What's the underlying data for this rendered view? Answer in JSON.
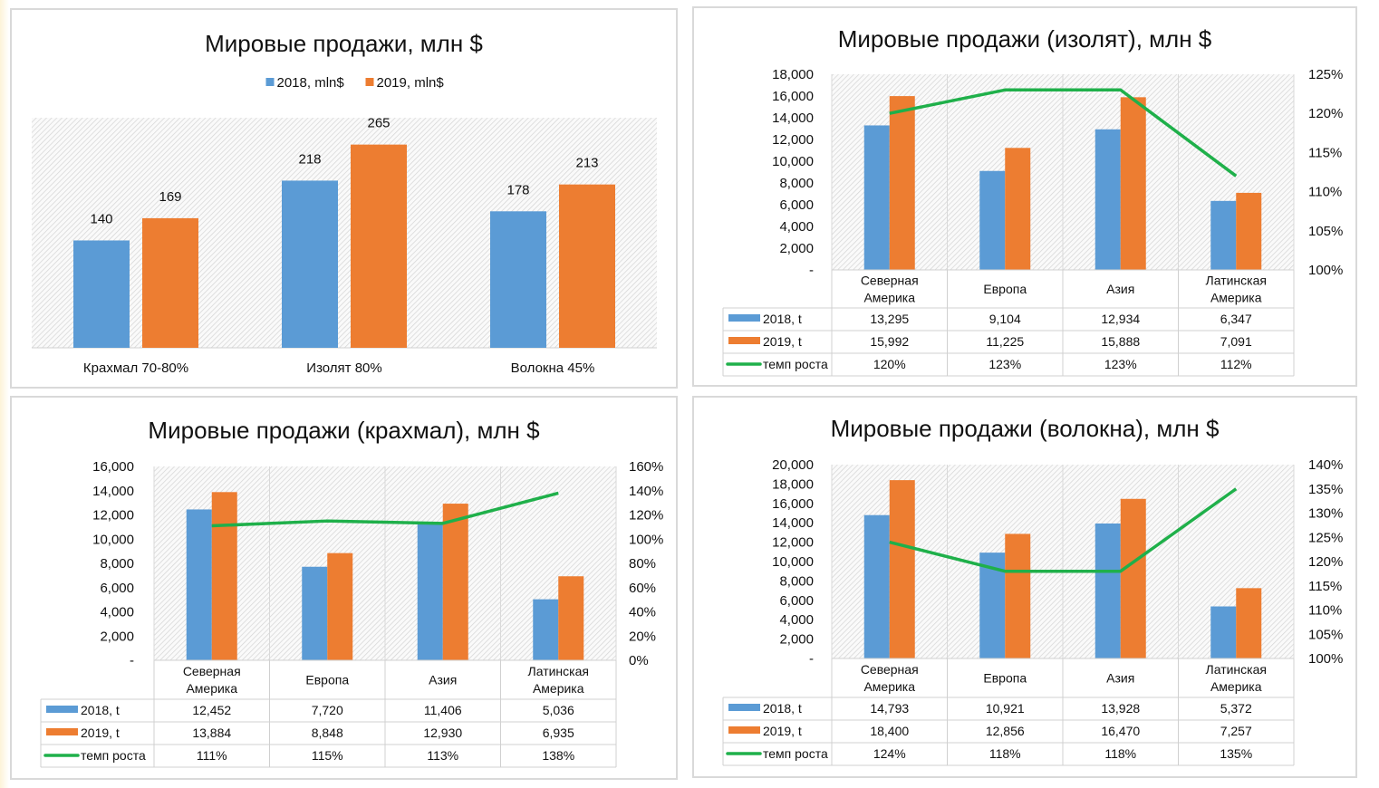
{
  "colors": {
    "y2018": "#5b9bd5",
    "y2019": "#ed7d31",
    "growth": "#1fb04a"
  },
  "chart_data": [
    {
      "type": "bar",
      "title": "Мировые продажи, млн $",
      "legend": [
        "2018, mln$",
        "2019, mln$"
      ],
      "legend_position": "top",
      "categories": [
        "Крахмал 70-80%",
        "Изолят 80%",
        "Волокна 45%"
      ],
      "series": [
        {
          "name": "2018, mln$",
          "values": [
            140,
            218,
            178
          ],
          "labels": [
            "140",
            "218",
            "178"
          ]
        },
        {
          "name": "2019, mln$",
          "values": [
            169,
            265,
            213
          ],
          "labels": [
            "169",
            "265",
            "213"
          ]
        }
      ],
      "ylim": [
        0,
        300
      ]
    },
    {
      "type": "bar+line",
      "title": "Мировые продажи (изолят), млн $",
      "categories": [
        "Северная|Америка",
        "Европа",
        "Азия",
        "Латинская|Америка"
      ],
      "series": [
        {
          "name": "2018, t",
          "values": [
            13295,
            9104,
            12934,
            6347
          ],
          "labels": [
            "13,295",
            "9,104",
            "12,934",
            "6,347"
          ]
        },
        {
          "name": "2019, t",
          "values": [
            15992,
            11225,
            15888,
            7091
          ],
          "labels": [
            "15,992",
            "11,225",
            "15,888",
            "7,091"
          ]
        },
        {
          "name": "темп роста",
          "axis": "right",
          "values": [
            1.2,
            1.23,
            1.23,
            1.12
          ],
          "labels": [
            "120%",
            "123%",
            "123%",
            "112%"
          ]
        }
      ],
      "ylim": [
        0,
        18000
      ],
      "y2lim": [
        1.0,
        1.25
      ],
      "yticks": [
        "-",
        "2,000",
        "4,000",
        "6,000",
        "8,000",
        "10,000",
        "12,000",
        "14,000",
        "16,000",
        "18,000"
      ],
      "y2ticks": [
        "100%",
        "105%",
        "110%",
        "115%",
        "120%",
        "125%"
      ]
    },
    {
      "type": "bar+line",
      "title": "Мировые продажи (крахмал), млн $",
      "categories": [
        "Северная|Америка",
        "Европа",
        "Азия",
        "Латинская|Америка"
      ],
      "series": [
        {
          "name": "2018, t",
          "values": [
            12452,
            7720,
            11406,
            5036
          ],
          "labels": [
            "12,452",
            "7,720",
            "11,406",
            "5,036"
          ]
        },
        {
          "name": "2019, t",
          "values": [
            13884,
            8848,
            12930,
            6935
          ],
          "labels": [
            "13,884",
            "8,848",
            "12,930",
            "6,935"
          ]
        },
        {
          "name": "темп роста",
          "axis": "right",
          "values": [
            1.11,
            1.15,
            1.13,
            1.38
          ],
          "labels": [
            "111%",
            "115%",
            "113%",
            "138%"
          ]
        }
      ],
      "ylim": [
        0,
        16000
      ],
      "y2lim": [
        0,
        1.6
      ],
      "yticks": [
        "-",
        "2,000",
        "4,000",
        "6,000",
        "8,000",
        "10,000",
        "12,000",
        "14,000",
        "16,000"
      ],
      "y2ticks": [
        "0%",
        "20%",
        "40%",
        "60%",
        "80%",
        "100%",
        "120%",
        "140%",
        "160%"
      ]
    },
    {
      "type": "bar+line",
      "title": "Мировые продажи (волокна), млн $",
      "categories": [
        "Северная|Америка",
        "Европа",
        "Азия",
        "Латинская|Америка"
      ],
      "series": [
        {
          "name": "2018, t",
          "values": [
            14793,
            10921,
            13928,
            5372
          ],
          "labels": [
            "14,793",
            "10,921",
            "13,928",
            "5,372"
          ]
        },
        {
          "name": "2019, t",
          "values": [
            18400,
            12856,
            16470,
            7257
          ],
          "labels": [
            "18,400",
            "12,856",
            "16,470",
            "7,257"
          ]
        },
        {
          "name": "темп роста",
          "axis": "right",
          "values": [
            1.24,
            1.18,
            1.18,
            1.35
          ],
          "labels": [
            "124%",
            "118%",
            "118%",
            "135%"
          ]
        }
      ],
      "ylim": [
        0,
        20000
      ],
      "y2lim": [
        1.0,
        1.4
      ],
      "yticks": [
        "-",
        "2,000",
        "4,000",
        "6,000",
        "8,000",
        "10,000",
        "12,000",
        "14,000",
        "16,000",
        "18,000",
        "20,000"
      ],
      "y2ticks": [
        "100%",
        "105%",
        "110%",
        "115%",
        "120%",
        "125%",
        "130%",
        "135%",
        "140%"
      ]
    }
  ]
}
